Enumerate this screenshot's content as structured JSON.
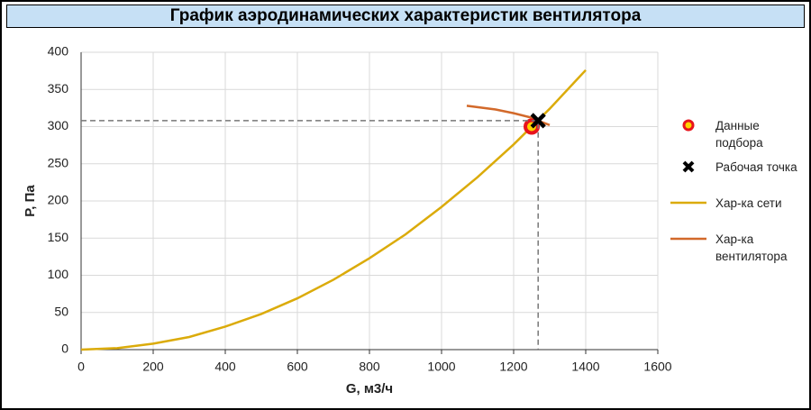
{
  "chart_data": {
    "type": "line",
    "title": "График аэродинамических характеристик вентилятора",
    "xlabel": "G, м3/ч",
    "ylabel": "P, Па",
    "xlim": [
      0,
      1600
    ],
    "xticks": [
      0,
      200,
      400,
      600,
      800,
      1000,
      1200,
      1400,
      1600
    ],
    "ylim": [
      0,
      400
    ],
    "yticks": [
      0,
      50,
      100,
      150,
      200,
      250,
      300,
      350,
      400
    ],
    "grid": true,
    "legend": "right",
    "crosshair": true,
    "series": [
      {
        "name": "Данные подбора",
        "type": "scatter",
        "marker": "ring",
        "color": "#e8141c",
        "x": [
          1250
        ],
        "values": [
          300
        ]
      },
      {
        "name": "Рабочая точка",
        "type": "scatter",
        "marker": "cross",
        "color": "#000000",
        "x": [
          1268
        ],
        "values": [
          308
        ]
      },
      {
        "name": "Хар-ка сети",
        "type": "line",
        "color": "#dbab0a",
        "x": [
          0,
          100,
          200,
          300,
          400,
          500,
          600,
          700,
          800,
          900,
          1000,
          1100,
          1200,
          1300,
          1400
        ],
        "values": [
          0,
          2,
          8,
          17,
          31,
          48,
          69,
          94,
          123,
          155,
          192,
          232,
          276,
          324,
          376
        ]
      },
      {
        "name": "Хар-ка вентилятора",
        "type": "line",
        "color": "#d2692a",
        "x": [
          1070,
          1150,
          1200,
          1250,
          1268,
          1300
        ],
        "values": [
          328,
          323,
          318,
          312,
          308,
          302
        ]
      }
    ]
  }
}
